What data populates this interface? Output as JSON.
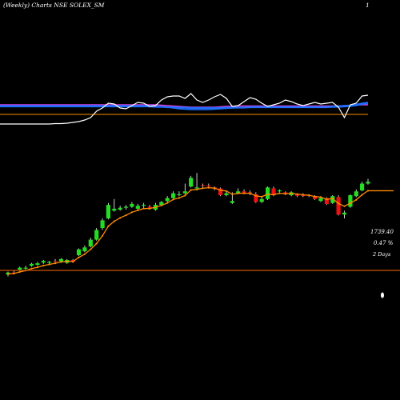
{
  "header": {
    "title": "(Weekly) Charts NSE SOLEX_SM",
    "page_marker": "1"
  },
  "readout": {
    "price": "1739.40",
    "change": "0.47 %",
    "duration": "2 Days"
  },
  "colors": {
    "background": "#000000",
    "bullish": "#22dd22",
    "bearish": "#ee1111",
    "ema": "#ff8c00",
    "indicator_line": "#ffffff",
    "band_blue": "#1f6fff",
    "band_magenta": "#e040e0",
    "band_orange": "#ff8c00",
    "divider": "#cc5500"
  },
  "chart_data": [
    {
      "type": "candlestick",
      "x": [
        1,
        2,
        3,
        4,
        5,
        6,
        7,
        8,
        9,
        10,
        11,
        12,
        13,
        14,
        15,
        16,
        17,
        18,
        19,
        20,
        21,
        22,
        23,
        24,
        25,
        26,
        27,
        28,
        29,
        30,
        31,
        32,
        33,
        34,
        35,
        36,
        37,
        38,
        39,
        40,
        41,
        42,
        43,
        44,
        45,
        46,
        47,
        48,
        49,
        50,
        51,
        52,
        53,
        54,
        55,
        56,
        57,
        58,
        59,
        60,
        61,
        62
      ],
      "series": [
        {
          "name": "",
          "open": [
            1170,
            1180,
            1195,
            1200,
            1215,
            1220,
            1232,
            1230,
            1240,
            1238,
            1230,
            1245,
            1270,
            1290,
            1315,
            1350,
            1410,
            1460,
            1500,
            1505,
            1515,
            1520,
            1510,
            1525,
            1520,
            1505,
            1530,
            1550,
            1565,
            1580,
            1590,
            1625,
            1615,
            1632,
            1630,
            1620,
            1615,
            1580,
            1540,
            1590,
            1600,
            1595,
            1585,
            1545,
            1560,
            1615,
            1600,
            1595,
            1580,
            1585,
            1582,
            1580,
            1575,
            1550,
            1565,
            1540,
            1570,
            1480,
            1520,
            1575,
            1605,
            1640
          ],
          "close": [
            1180,
            1175,
            1205,
            1205,
            1225,
            1228,
            1240,
            1235,
            1238,
            1250,
            1245,
            1235,
            1300,
            1310,
            1350,
            1400,
            1450,
            1530,
            1510,
            1515,
            1520,
            1535,
            1525,
            1530,
            1510,
            1530,
            1545,
            1565,
            1590,
            1585,
            1600,
            1670,
            1620,
            1628,
            1625,
            1612,
            1580,
            1590,
            1550,
            1600,
            1590,
            1590,
            1545,
            1560,
            1620,
            1580,
            1605,
            1585,
            1595,
            1577,
            1575,
            1577,
            1560,
            1565,
            1535,
            1575,
            1480,
            1490,
            1580,
            1600,
            1640,
            1650
          ],
          "high": [
            1185,
            1190,
            1210,
            1215,
            1230,
            1235,
            1245,
            1240,
            1250,
            1255,
            1250,
            1250,
            1305,
            1320,
            1360,
            1410,
            1460,
            1540,
            1560,
            1525,
            1530,
            1545,
            1535,
            1540,
            1530,
            1540,
            1550,
            1575,
            1600,
            1600,
            1640,
            1680,
            1695,
            1640,
            1640,
            1625,
            1620,
            1600,
            1595,
            1615,
            1610,
            1605,
            1595,
            1570,
            1625,
            1625,
            1610,
            1600,
            1600,
            1590,
            1590,
            1585,
            1580,
            1575,
            1570,
            1580,
            1580,
            1500,
            1585,
            1610,
            1650,
            1665
          ],
          "low": [
            1160,
            1170,
            1190,
            1195,
            1210,
            1215,
            1225,
            1225,
            1230,
            1230,
            1225,
            1230,
            1265,
            1285,
            1310,
            1345,
            1400,
            1455,
            1495,
            1500,
            1505,
            1515,
            1505,
            1515,
            1505,
            1500,
            1525,
            1545,
            1560,
            1575,
            1585,
            1620,
            1605,
            1620,
            1620,
            1605,
            1575,
            1575,
            1535,
            1585,
            1585,
            1580,
            1540,
            1540,
            1555,
            1575,
            1595,
            1580,
            1575,
            1570,
            1570,
            1570,
            1555,
            1545,
            1530,
            1535,
            1475,
            1460,
            1515,
            1570,
            1600,
            1635
          ]
        }
      ],
      "ema": [
        1172,
        1175,
        1183,
        1190,
        1200,
        1207,
        1216,
        1222,
        1228,
        1235,
        1238,
        1237,
        1258,
        1275,
        1300,
        1330,
        1370,
        1420,
        1445,
        1463,
        1476,
        1492,
        1502,
        1511,
        1511,
        1518,
        1527,
        1540,
        1558,
        1566,
        1578,
        1607,
        1610,
        1616,
        1619,
        1617,
        1606,
        1601,
        1585,
        1590,
        1590,
        1590,
        1577,
        1572,
        1585,
        1583,
        1590,
        1588,
        1590,
        1586,
        1582,
        1580,
        1573,
        1570,
        1558,
        1563,
        1537,
        1523,
        1539,
        1556,
        1582,
        1603
      ],
      "ylim": [
        1100,
        1700
      ]
    },
    {
      "type": "line",
      "x": [
        1,
        2,
        3,
        4,
        5,
        6,
        7,
        8,
        9,
        10,
        11,
        12,
        13,
        14,
        15,
        16,
        17,
        18,
        19,
        20,
        21,
        22,
        23,
        24,
        25,
        26,
        27,
        28,
        29,
        30,
        31,
        32,
        33,
        34,
        35,
        36,
        37,
        38,
        39,
        40,
        41,
        42,
        43,
        44,
        45,
        46,
        47,
        48,
        49,
        50,
        51,
        52,
        53,
        54,
        55,
        56,
        57,
        58,
        59,
        60,
        61,
        62
      ],
      "series": [
        {
          "name": "",
          "values": [
            20,
            20,
            20,
            20,
            20,
            20,
            20,
            20,
            21,
            21,
            22,
            24,
            26,
            30,
            36,
            52,
            60,
            72,
            70,
            60,
            58,
            66,
            74,
            72,
            64,
            66,
            80,
            88,
            90,
            90,
            84,
            96,
            80,
            74,
            80,
            88,
            94,
            84,
            64,
            66,
            76,
            86,
            82,
            72,
            64,
            68,
            72,
            80,
            76,
            70,
            66,
            70,
            74,
            70,
            72,
            74,
            62,
            36,
            68,
            72,
            90,
            92
          ]
        },
        {
          "name": "",
          "values": [
            64,
            64,
            64,
            64,
            64,
            64,
            64,
            64,
            64,
            64,
            64,
            64,
            64,
            64,
            64,
            64,
            64,
            64,
            64,
            64,
            64,
            64,
            64,
            64,
            64,
            63,
            63,
            62,
            62,
            61,
            61,
            60,
            60,
            60,
            60,
            60,
            60,
            61,
            61,
            61,
            61,
            62,
            62,
            62,
            62,
            62,
            62,
            62,
            62,
            62,
            62,
            62,
            62,
            62,
            62,
            63,
            63,
            64,
            65,
            67,
            70,
            72
          ]
        },
        {
          "name": "",
          "values": [
            66,
            66,
            66,
            66,
            66,
            66,
            66,
            66,
            66,
            66,
            66,
            66,
            66,
            66,
            66,
            66,
            66,
            66,
            66,
            66,
            66,
            66,
            66,
            66,
            66,
            65,
            64,
            62,
            60,
            58,
            57,
            56,
            56,
            56,
            56,
            57,
            58,
            59,
            60,
            61,
            62,
            63,
            63,
            63,
            63,
            63,
            63,
            63,
            63,
            63,
            63,
            63,
            63,
            63,
            63,
            64,
            65,
            66,
            67,
            69,
            72,
            74
          ]
        },
        {
          "name": "",
          "values": [
            44,
            44,
            44,
            44,
            44,
            44,
            44,
            44,
            44,
            44,
            44,
            44,
            44,
            44,
            44,
            44,
            44,
            44,
            44,
            44,
            44,
            44,
            44,
            44,
            44,
            44,
            44,
            44,
            44,
            44,
            44,
            44,
            44,
            44,
            44,
            44,
            44,
            44,
            44,
            44,
            44,
            44,
            44,
            44,
            44,
            44,
            44,
            44,
            44,
            44,
            44,
            44,
            44,
            44,
            44,
            44,
            44,
            44,
            44,
            44,
            44,
            44
          ]
        },
        {
          "name": "",
          "values": [
            68,
            68,
            68,
            68,
            68,
            68,
            68,
            68,
            68,
            68,
            68,
            68,
            68,
            68,
            68,
            68,
            68,
            68,
            68,
            68,
            68,
            68,
            68,
            68,
            68,
            68,
            67,
            66,
            65,
            64,
            63,
            62,
            62,
            62,
            62,
            62,
            63,
            64,
            64,
            65,
            65,
            65,
            65,
            65,
            65,
            65,
            65,
            65,
            65,
            65,
            65,
            65,
            65,
            65,
            65,
            65,
            65,
            66,
            66,
            67,
            68,
            68
          ]
        }
      ],
      "ylim": [
        0,
        100
      ]
    }
  ]
}
